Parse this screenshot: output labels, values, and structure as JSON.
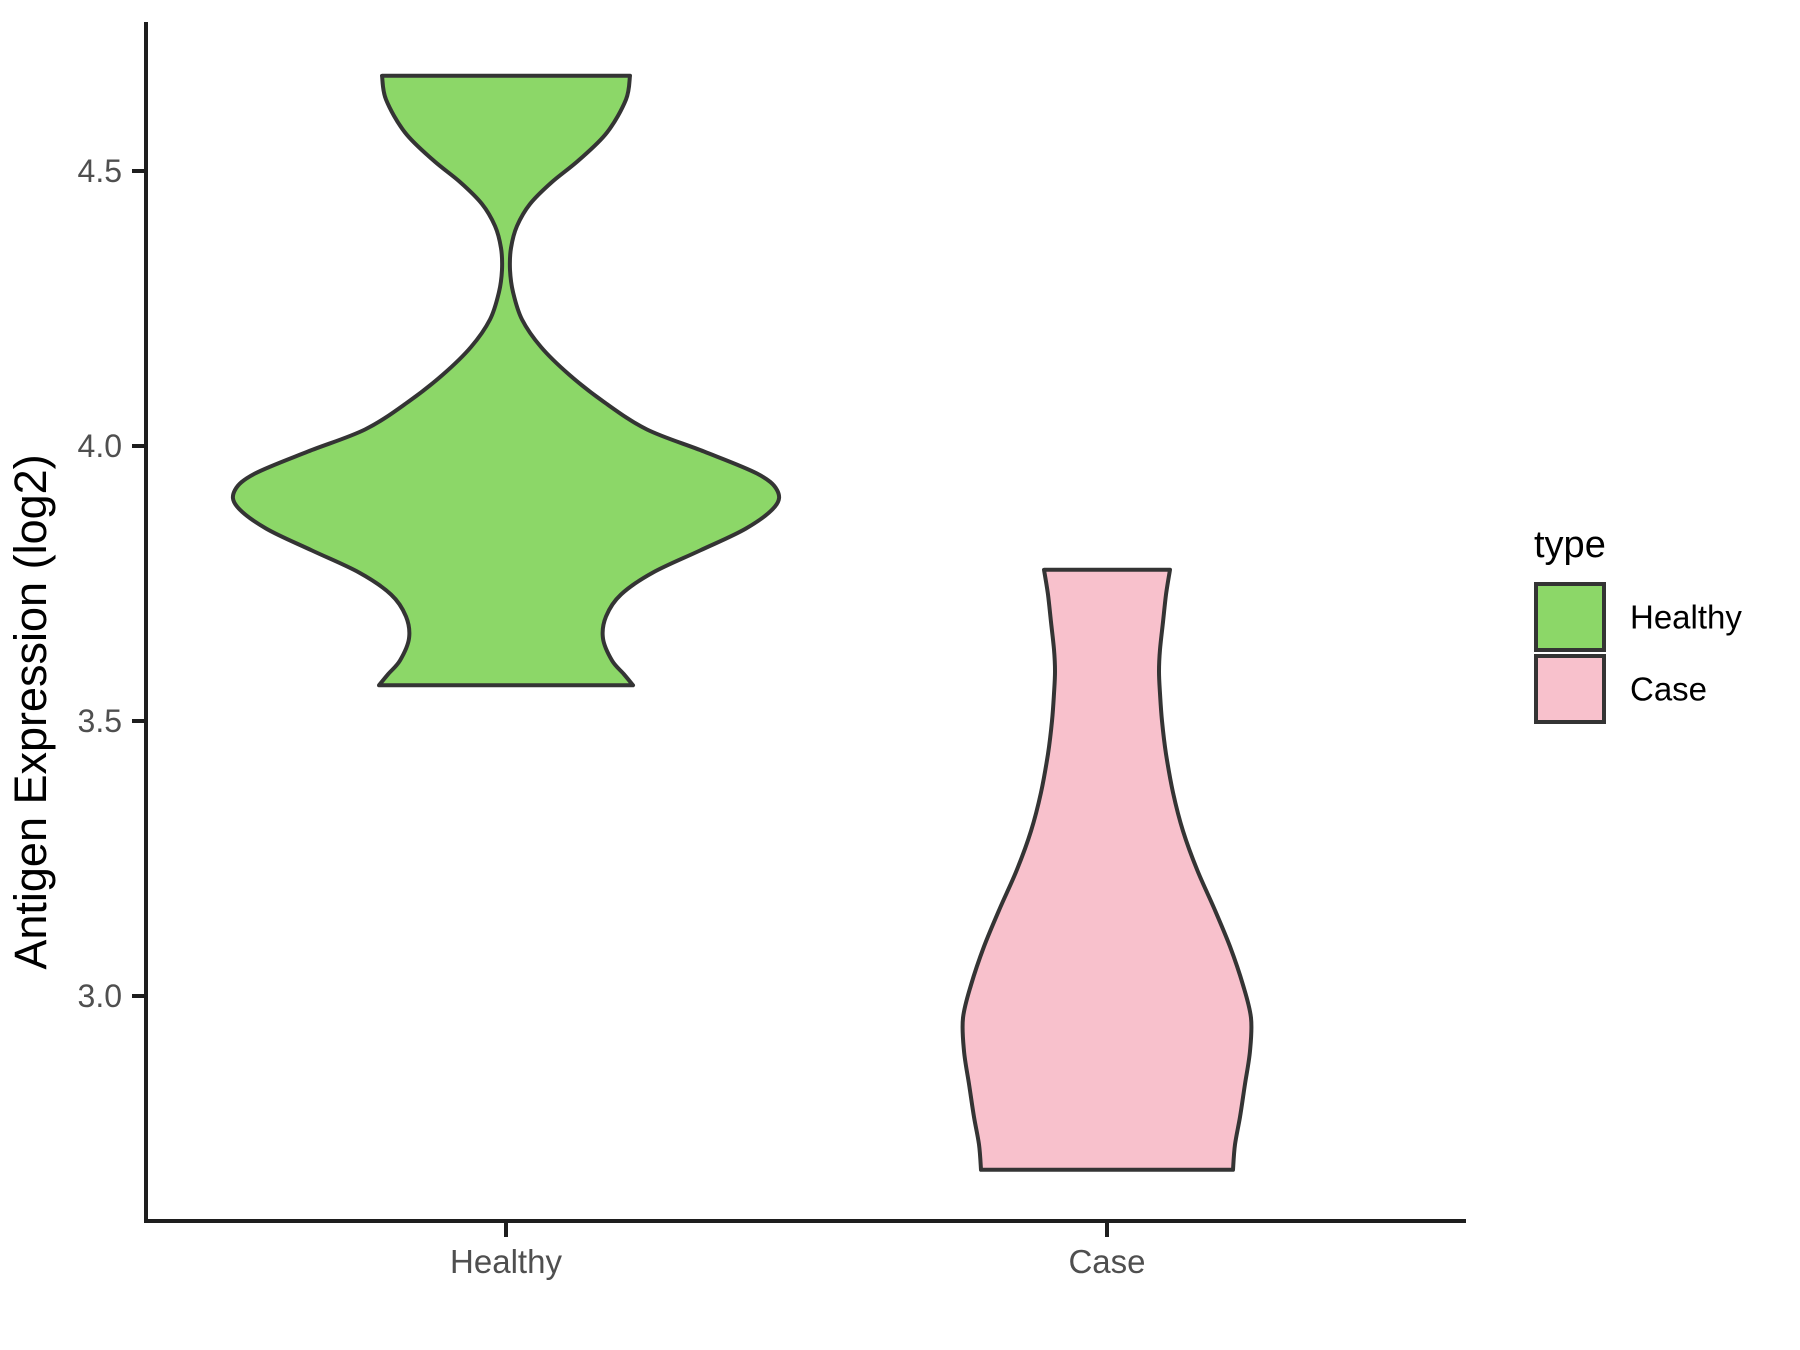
{
  "chart_data": {
    "type": "violin",
    "title": "",
    "xlabel": "",
    "ylabel": "Antigen Expression (log2)",
    "categories": [
      "Healthy",
      "Case"
    ],
    "y_ticks": [
      4.5,
      4.0,
      3.5,
      3.0
    ],
    "y_tick_labels": [
      "4.5",
      "4.0",
      "3.5",
      "3.0"
    ],
    "ylim": [
      2.59,
      4.78
    ],
    "grid": false,
    "legend": {
      "title": "type",
      "position": "right",
      "entries": [
        {
          "label": "Healthy",
          "color": "#8CD768"
        },
        {
          "label": "Case",
          "color": "#F8C1CC"
        }
      ]
    },
    "colors": {
      "healthy_fill": "#8CD768",
      "case_fill": "#F8C1CC",
      "violin_stroke": "#343434",
      "axis_line": "#1e1e1e",
      "tick_label": "#4f4f4f",
      "text": "#000000",
      "background": "#ffffff"
    },
    "series": [
      {
        "name": "Healthy",
        "fill": "#8CD768",
        "category_index": 0,
        "y_range": [
          3.565,
          4.673
        ],
        "density_profile": [
          [
            4.673,
            0.2063
          ],
          [
            4.63,
            0.1997
          ],
          [
            4.57,
            0.1681
          ],
          [
            4.52,
            0.1215
          ],
          [
            4.48,
            0.0765
          ],
          [
            4.44,
            0.0399
          ],
          [
            4.4,
            0.0183
          ],
          [
            4.36,
            0.0083
          ],
          [
            4.32,
            0.0067
          ],
          [
            4.28,
            0.0116
          ],
          [
            4.23,
            0.0266
          ],
          [
            4.18,
            0.0582
          ],
          [
            4.13,
            0.1048
          ],
          [
            4.08,
            0.1631
          ],
          [
            4.03,
            0.2346
          ],
          [
            3.99,
            0.3294
          ],
          [
            3.95,
            0.4176
          ],
          [
            3.92,
            0.4509
          ],
          [
            3.89,
            0.4476
          ],
          [
            3.85,
            0.3993
          ],
          [
            3.81,
            0.3228
          ],
          [
            3.77,
            0.2446
          ],
          [
            3.73,
            0.1913
          ],
          [
            3.69,
            0.1664
          ],
          [
            3.65,
            0.1614
          ],
          [
            3.61,
            0.1764
          ],
          [
            3.585,
            0.1963
          ],
          [
            3.565,
            0.2113
          ]
        ]
      },
      {
        "name": "Case",
        "fill": "#F8C1CC",
        "category_index": 1,
        "y_range": [
          2.684,
          3.775
        ],
        "density_profile": [
          [
            3.775,
            0.1048
          ],
          [
            3.73,
            0.0982
          ],
          [
            3.68,
            0.0932
          ],
          [
            3.63,
            0.0882
          ],
          [
            3.59,
            0.0865
          ],
          [
            3.55,
            0.0882
          ],
          [
            3.5,
            0.0915
          ],
          [
            3.44,
            0.0982
          ],
          [
            3.37,
            0.1098
          ],
          [
            3.3,
            0.1265
          ],
          [
            3.23,
            0.1497
          ],
          [
            3.16,
            0.178
          ],
          [
            3.09,
            0.2046
          ],
          [
            3.02,
            0.2263
          ],
          [
            2.96,
            0.2396
          ],
          [
            2.9,
            0.2379
          ],
          [
            2.84,
            0.2296
          ],
          [
            2.78,
            0.2213
          ],
          [
            2.73,
            0.213
          ],
          [
            2.684,
            0.2096
          ]
        ]
      }
    ]
  }
}
